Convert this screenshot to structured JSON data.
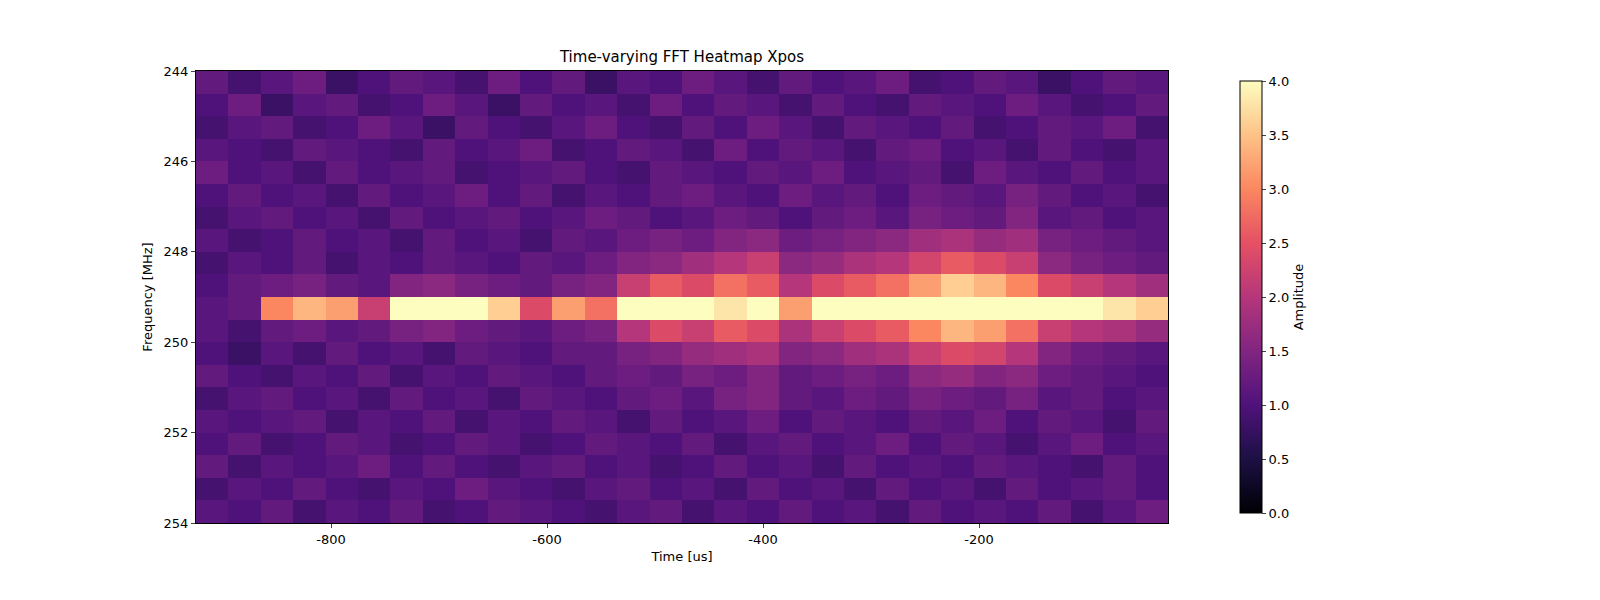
{
  "chart_data": {
    "type": "heatmap",
    "title": "Time-varying FFT Heatmap Xpos",
    "x_label": "Time [us]",
    "y_label": "Frequency [MHz]",
    "color": "magma",
    "xlim": [
      -925,
      -25
    ],
    "ylim": [
      244,
      254
    ],
    "xticks": [
      -800,
      -600,
      -400,
      -200
    ],
    "yticks": [
      244,
      246,
      248,
      250,
      252,
      254
    ],
    "x": [
      -910,
      -880,
      -850,
      -820,
      -790,
      -760,
      -730,
      -700,
      -670,
      -640,
      -610,
      -580,
      -550,
      -520,
      -490,
      -460,
      -430,
      -400,
      -370,
      -340,
      -310,
      -280,
      -250,
      -220,
      -190,
      -160,
      -130,
      -100,
      -70,
      -40
    ],
    "y": [
      244.25,
      244.75,
      245.25,
      245.75,
      246.25,
      246.75,
      247.25,
      247.75,
      248.25,
      248.75,
      249.25,
      249.75,
      250.25,
      250.75,
      251.25,
      251.75,
      252.25,
      252.75,
      253.25,
      253.75
    ],
    "z": [
      [
        1.2,
        0.9,
        1.1,
        1.3,
        0.8,
        1.0,
        1.2,
        1.1,
        0.9,
        1.3,
        1.0,
        1.2,
        0.8,
        1.1,
        1.0,
        1.3,
        1.1,
        0.9,
        1.2,
        1.0,
        1.1,
        1.3,
        0.9,
        1.0,
        1.2,
        1.1,
        0.8,
        1.0,
        1.2,
        1.1
      ],
      [
        1.0,
        1.3,
        0.8,
        1.1,
        1.2,
        0.9,
        1.0,
        1.3,
        1.1,
        0.8,
        1.2,
        1.0,
        1.1,
        0.9,
        1.3,
        1.0,
        1.2,
        1.1,
        0.9,
        1.2,
        1.0,
        0.9,
        1.2,
        1.1,
        1.0,
        1.3,
        1.1,
        0.9,
        1.0,
        1.2
      ],
      [
        0.9,
        1.1,
        1.2,
        0.9,
        1.0,
        1.3,
        1.1,
        0.8,
        1.2,
        1.0,
        0.9,
        1.1,
        1.3,
        1.0,
        0.9,
        1.2,
        1.0,
        1.3,
        1.1,
        0.9,
        1.2,
        1.1,
        1.0,
        1.2,
        0.9,
        1.0,
        1.2,
        1.1,
        1.3,
        0.9
      ],
      [
        1.1,
        1.0,
        0.9,
        1.2,
        1.1,
        1.0,
        0.9,
        1.2,
        1.0,
        1.1,
        1.3,
        0.9,
        1.0,
        1.2,
        1.1,
        0.9,
        1.3,
        1.0,
        1.2,
        1.1,
        0.9,
        1.2,
        1.3,
        1.0,
        1.1,
        0.9,
        1.2,
        1.0,
        0.9,
        1.1
      ],
      [
        1.3,
        1.0,
        1.1,
        0.9,
        1.2,
        1.0,
        1.1,
        1.2,
        0.9,
        1.0,
        1.1,
        1.2,
        1.0,
        0.9,
        1.2,
        1.1,
        1.0,
        1.2,
        1.1,
        1.3,
        1.0,
        1.1,
        1.2,
        0.9,
        1.3,
        1.1,
        1.0,
        1.2,
        1.0,
        1.1
      ],
      [
        1.0,
        1.2,
        1.0,
        1.1,
        0.9,
        1.2,
        1.0,
        1.1,
        1.3,
        1.0,
        1.2,
        0.9,
        1.1,
        1.0,
        1.2,
        1.3,
        1.1,
        1.0,
        1.3,
        1.1,
        1.2,
        1.0,
        1.3,
        1.2,
        1.1,
        1.4,
        1.2,
        1.0,
        1.1,
        0.9
      ],
      [
        0.9,
        1.1,
        1.2,
        1.0,
        1.1,
        0.9,
        1.2,
        1.0,
        1.1,
        1.2,
        1.0,
        1.1,
        1.3,
        1.2,
        1.0,
        1.1,
        1.3,
        1.2,
        1.0,
        1.2,
        1.3,
        1.1,
        1.4,
        1.3,
        1.2,
        1.5,
        1.1,
        1.2,
        1.0,
        1.1
      ],
      [
        1.1,
        0.9,
        1.0,
        1.2,
        1.0,
        1.1,
        0.9,
        1.2,
        1.0,
        1.1,
        0.9,
        1.2,
        1.1,
        1.3,
        1.4,
        1.3,
        1.5,
        1.6,
        1.3,
        1.4,
        1.5,
        1.6,
        1.8,
        1.9,
        1.7,
        1.8,
        1.4,
        1.3,
        1.2,
        1.1
      ],
      [
        0.9,
        1.1,
        1.0,
        1.2,
        0.9,
        1.1,
        1.0,
        1.2,
        1.1,
        1.0,
        1.2,
        1.1,
        1.3,
        1.5,
        1.6,
        1.8,
        2.0,
        2.2,
        1.6,
        1.7,
        1.9,
        2.0,
        2.3,
        2.6,
        2.4,
        2.2,
        1.6,
        1.4,
        1.3,
        1.2
      ],
      [
        1.0,
        1.2,
        1.3,
        1.4,
        1.2,
        1.1,
        1.5,
        1.6,
        1.4,
        1.3,
        1.2,
        1.4,
        1.5,
        2.2,
        2.6,
        2.4,
        2.8,
        2.6,
        2.0,
        2.4,
        2.6,
        2.8,
        3.2,
        3.6,
        3.4,
        3.0,
        2.4,
        2.2,
        2.0,
        1.8
      ],
      [
        1.1,
        1.2,
        3.0,
        3.4,
        3.2,
        2.2,
        4.0,
        4.0,
        4.0,
        3.6,
        2.4,
        3.2,
        2.8,
        4.0,
        4.0,
        4.0,
        3.8,
        4.0,
        3.2,
        4.0,
        4.0,
        4.0,
        4.0,
        4.0,
        4.0,
        4.0,
        4.0,
        4.0,
        3.8,
        3.6
      ],
      [
        1.1,
        0.9,
        1.2,
        1.3,
        1.1,
        1.2,
        1.4,
        1.5,
        1.3,
        1.2,
        1.1,
        1.3,
        1.4,
        2.0,
        2.4,
        2.2,
        2.6,
        2.4,
        1.9,
        2.2,
        2.4,
        2.6,
        3.0,
        3.4,
        3.2,
        2.8,
        2.2,
        2.0,
        1.9,
        1.7
      ],
      [
        1.0,
        0.8,
        1.1,
        0.9,
        1.2,
        1.0,
        1.1,
        0.9,
        1.2,
        1.1,
        1.0,
        1.2,
        1.2,
        1.4,
        1.5,
        1.7,
        1.8,
        1.9,
        1.5,
        1.6,
        1.8,
        1.9,
        2.2,
        2.4,
        2.3,
        2.0,
        1.5,
        1.3,
        1.2,
        1.1
      ],
      [
        1.2,
        1.0,
        0.9,
        1.1,
        1.0,
        1.2,
        0.9,
        1.1,
        1.0,
        1.2,
        1.1,
        1.0,
        1.2,
        1.3,
        1.2,
        1.4,
        1.3,
        1.5,
        1.2,
        1.3,
        1.4,
        1.3,
        1.6,
        1.7,
        1.5,
        1.6,
        1.3,
        1.2,
        1.1,
        1.0
      ],
      [
        0.9,
        1.1,
        1.2,
        1.0,
        1.1,
        0.9,
        1.2,
        1.0,
        1.1,
        0.9,
        1.2,
        1.1,
        1.0,
        1.2,
        1.3,
        1.1,
        1.4,
        1.5,
        1.2,
        1.1,
        1.3,
        1.2,
        1.4,
        1.3,
        1.2,
        1.4,
        1.1,
        1.2,
        1.0,
        1.1
      ],
      [
        1.1,
        1.0,
        1.1,
        1.2,
        0.9,
        1.1,
        1.0,
        1.2,
        0.9,
        1.1,
        1.0,
        1.2,
        1.1,
        0.9,
        1.2,
        1.0,
        1.1,
        1.3,
        1.0,
        1.2,
        1.1,
        1.0,
        1.2,
        1.1,
        1.3,
        1.0,
        1.2,
        1.1,
        0.9,
        1.2
      ],
      [
        1.0,
        1.2,
        0.9,
        1.0,
        1.2,
        1.1,
        0.9,
        1.0,
        1.2,
        1.1,
        0.9,
        1.0,
        1.2,
        1.1,
        1.0,
        1.2,
        0.9,
        1.1,
        1.2,
        1.0,
        1.1,
        1.3,
        1.0,
        1.2,
        1.1,
        0.9,
        1.1,
        1.3,
        1.0,
        1.1
      ],
      [
        1.2,
        0.9,
        1.1,
        1.0,
        1.1,
        1.3,
        1.0,
        1.2,
        1.0,
        0.9,
        1.1,
        1.2,
        1.0,
        1.1,
        0.9,
        1.0,
        1.2,
        1.0,
        1.1,
        0.9,
        1.2,
        1.0,
        1.1,
        1.0,
        1.2,
        1.1,
        1.0,
        0.9,
        1.2,
        1.0
      ],
      [
        0.9,
        1.1,
        1.0,
        1.2,
        1.0,
        0.9,
        1.1,
        1.0,
        1.3,
        1.1,
        1.0,
        0.9,
        1.1,
        1.2,
        1.0,
        1.1,
        0.9,
        1.2,
        1.0,
        1.1,
        0.9,
        1.2,
        1.0,
        1.1,
        0.9,
        1.2,
        1.0,
        1.1,
        1.2,
        1.0
      ],
      [
        1.1,
        1.0,
        1.2,
        0.9,
        1.1,
        1.0,
        1.2,
        0.9,
        1.0,
        1.2,
        1.1,
        1.0,
        0.9,
        1.1,
        1.2,
        0.9,
        1.1,
        1.0,
        1.2,
        1.0,
        1.1,
        0.9,
        1.2,
        1.0,
        1.1,
        1.0,
        1.2,
        0.9,
        1.1,
        1.3
      ]
    ],
    "colorbar": {
      "label": "Amplitude",
      "range": [
        0,
        4
      ],
      "ticks": [
        {
          "value": 0,
          "label": "0.0"
        },
        0.5,
        {
          "value": 1,
          "label": "1.0"
        },
        1.5,
        {
          "value": 2,
          "label": "2.0"
        },
        2.5,
        {
          "value": 3,
          "label": "3.0"
        },
        3.5,
        {
          "value": 4,
          "label": "4.0"
        }
      ]
    }
  }
}
